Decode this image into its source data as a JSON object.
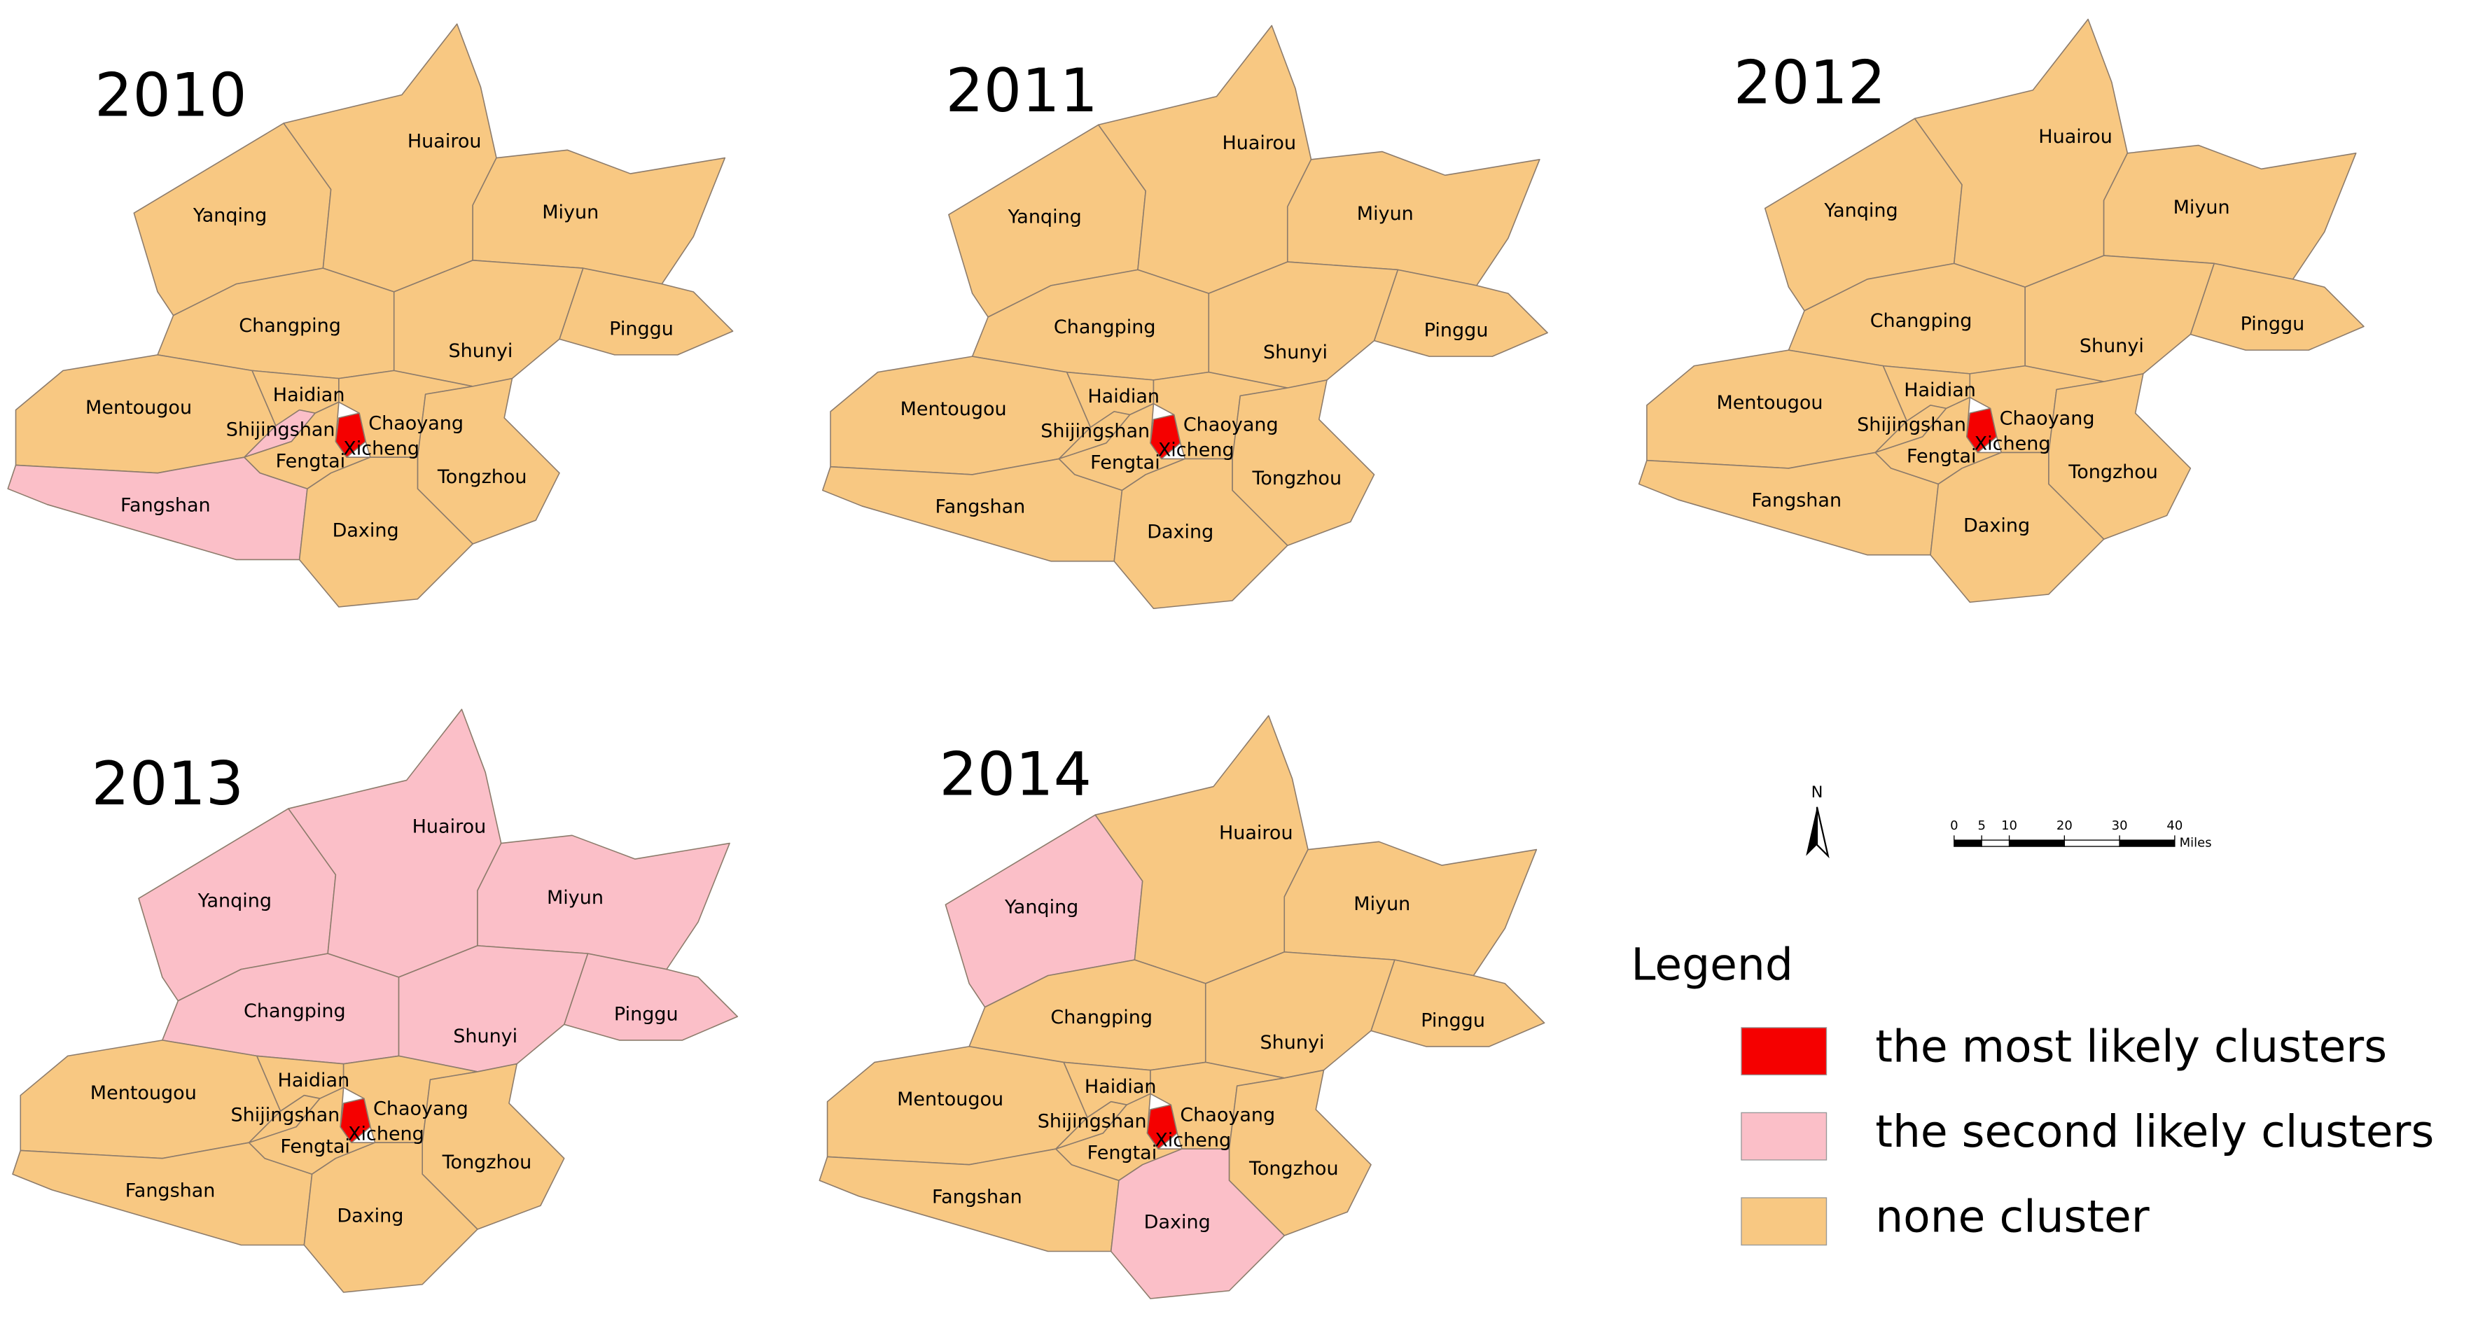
{
  "maps": [
    {
      "year": "2010",
      "districts": [
        {
          "name": "Yanqing",
          "cluster": 2
        },
        {
          "name": "Huairou",
          "cluster": 2
        },
        {
          "name": "Miyun",
          "cluster": 2
        },
        {
          "name": "Pinggu",
          "cluster": 2
        },
        {
          "name": "Shunyi",
          "cluster": 2
        },
        {
          "name": "Changping",
          "cluster": 2
        },
        {
          "name": "Mentougou",
          "cluster": 2
        },
        {
          "name": "Fangshan",
          "cluster": 1
        },
        {
          "name": "Haidian",
          "cluster": 2
        },
        {
          "name": "Shijingshan",
          "cluster": 1
        },
        {
          "name": "Fengtai",
          "cluster": 2
        },
        {
          "name": "Chaoyang",
          "cluster": 2
        },
        {
          "name": "Tongzhou",
          "cluster": 2
        },
        {
          "name": "Daxing",
          "cluster": 2
        },
        {
          "name": "Xicheng",
          "cluster": 0
        }
      ]
    },
    {
      "year": "2011",
      "districts": [
        {
          "name": "Yanqing",
          "cluster": 2
        },
        {
          "name": "Huairou",
          "cluster": 2
        },
        {
          "name": "Miyun",
          "cluster": 2
        },
        {
          "name": "Pinggu",
          "cluster": 2
        },
        {
          "name": "Shunyi",
          "cluster": 2
        },
        {
          "name": "Changping",
          "cluster": 2
        },
        {
          "name": "Mentougou",
          "cluster": 2
        },
        {
          "name": "Fangshan",
          "cluster": 2
        },
        {
          "name": "Haidian",
          "cluster": 2
        },
        {
          "name": "Shijingshan",
          "cluster": 2
        },
        {
          "name": "Fengtai",
          "cluster": 2
        },
        {
          "name": "Chaoyang",
          "cluster": 2
        },
        {
          "name": "Tongzhou",
          "cluster": 2
        },
        {
          "name": "Daxing",
          "cluster": 2
        },
        {
          "name": "Xicheng",
          "cluster": 0
        }
      ]
    },
    {
      "year": "2012",
      "districts": [
        {
          "name": "Yanqing",
          "cluster": 2
        },
        {
          "name": "Huairou",
          "cluster": 2
        },
        {
          "name": "Miyun",
          "cluster": 2
        },
        {
          "name": "Pinggu",
          "cluster": 2
        },
        {
          "name": "Shunyi",
          "cluster": 2
        },
        {
          "name": "Changping",
          "cluster": 2
        },
        {
          "name": "Mentougou",
          "cluster": 2
        },
        {
          "name": "Fangshan",
          "cluster": 2
        },
        {
          "name": "Haidian",
          "cluster": 2
        },
        {
          "name": "Shijingshan",
          "cluster": 2
        },
        {
          "name": "Fengtai",
          "cluster": 2
        },
        {
          "name": "Chaoyang",
          "cluster": 2
        },
        {
          "name": "Tongzhou",
          "cluster": 2
        },
        {
          "name": "Daxing",
          "cluster": 2
        },
        {
          "name": "Xicheng",
          "cluster": 0
        }
      ]
    },
    {
      "year": "2013",
      "districts": [
        {
          "name": "Yanqing",
          "cluster": 1
        },
        {
          "name": "Huairou",
          "cluster": 1
        },
        {
          "name": "Miyun",
          "cluster": 1
        },
        {
          "name": "Pinggu",
          "cluster": 1
        },
        {
          "name": "Shunyi",
          "cluster": 1
        },
        {
          "name": "Changping",
          "cluster": 1
        },
        {
          "name": "Mentougou",
          "cluster": 2
        },
        {
          "name": "Fangshan",
          "cluster": 2
        },
        {
          "name": "Haidian",
          "cluster": 2
        },
        {
          "name": "Shijingshan",
          "cluster": 2
        },
        {
          "name": "Fengtai",
          "cluster": 2
        },
        {
          "name": "Chaoyang",
          "cluster": 2
        },
        {
          "name": "Tongzhou",
          "cluster": 2
        },
        {
          "name": "Daxing",
          "cluster": 2
        },
        {
          "name": "Xicheng",
          "cluster": 0
        }
      ]
    },
    {
      "year": "2014",
      "districts": [
        {
          "name": "Yanqing",
          "cluster": 1
        },
        {
          "name": "Huairou",
          "cluster": 2
        },
        {
          "name": "Miyun",
          "cluster": 2
        },
        {
          "name": "Pinggu",
          "cluster": 2
        },
        {
          "name": "Shunyi",
          "cluster": 2
        },
        {
          "name": "Changping",
          "cluster": 2
        },
        {
          "name": "Mentougou",
          "cluster": 2
        },
        {
          "name": "Fangshan",
          "cluster": 2
        },
        {
          "name": "Haidian",
          "cluster": 2
        },
        {
          "name": "Shijingshan",
          "cluster": 2
        },
        {
          "name": "Fengtai",
          "cluster": 2
        },
        {
          "name": "Chaoyang",
          "cluster": 2
        },
        {
          "name": "Tongzhou",
          "cluster": 2
        },
        {
          "name": "Daxing",
          "cluster": 1
        },
        {
          "name": "Xicheng",
          "cluster": 0
        }
      ]
    }
  ],
  "legend": {
    "title": "Legend",
    "items": [
      {
        "label": "the most likely clusters",
        "color": "#f50000"
      },
      {
        "label": "the second likely clusters",
        "color": "#fbbfc8"
      },
      {
        "label": "none cluster",
        "color": "#f8c882"
      }
    ]
  },
  "north": "N",
  "scale": {
    "ticks": [
      0,
      5,
      10,
      20,
      30,
      40
    ],
    "unit": "Miles"
  }
}
